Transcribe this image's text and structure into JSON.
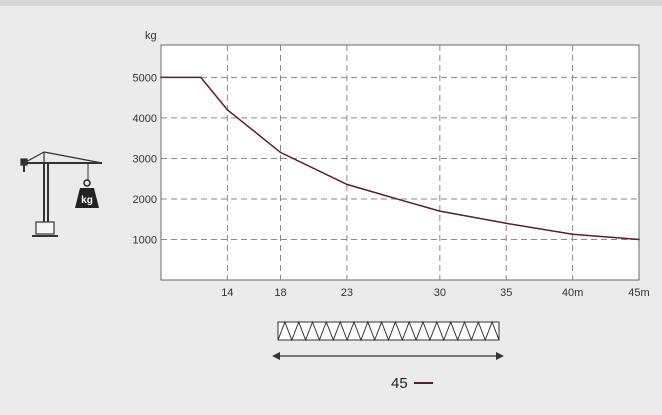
{
  "chart_data": {
    "type": "line",
    "ylabel": "kg",
    "x_tick_labels": [
      "14",
      "18",
      "23",
      "30",
      "35",
      "40m",
      "45m"
    ],
    "y_tick_labels": [
      "1000",
      "2000",
      "3000",
      "4000",
      "5000"
    ],
    "x_ticks": [
      14,
      18,
      23,
      30,
      35,
      40,
      45
    ],
    "y_ticks": [
      1000,
      2000,
      3000,
      4000,
      5000
    ],
    "xlim": [
      9,
      45
    ],
    "ylim": [
      0,
      5800
    ],
    "grid": true,
    "series": [
      {
        "name": "45",
        "color": "#5a1f2c",
        "x": [
          9,
          12,
          14,
          18,
          23,
          27,
          30,
          35,
          40,
          45
        ],
        "y": [
          5000,
          5000,
          4200,
          3150,
          2360,
          1980,
          1700,
          1400,
          1130,
          1000
        ]
      }
    ]
  },
  "legend": {
    "label": "45",
    "color": "#5a1f2c"
  },
  "icons": {
    "crane": "tower-crane-icon",
    "weight": "kg-weight-icon",
    "jib": "jib-truss-icon"
  },
  "weight_label": "kg"
}
